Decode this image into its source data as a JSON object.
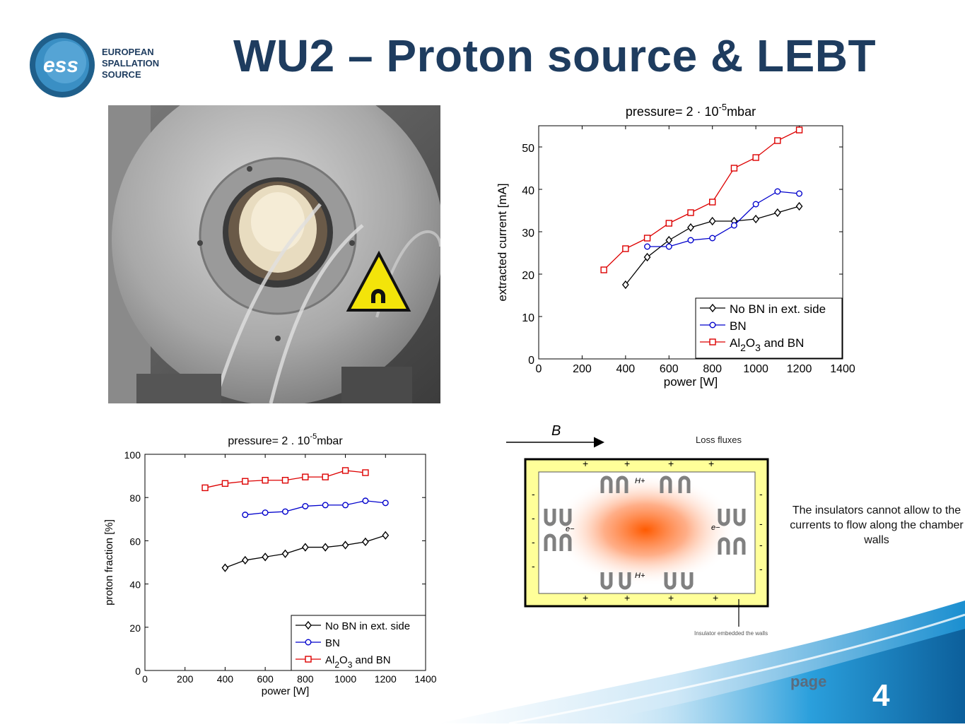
{
  "header": {
    "title": "WU2 – Proton source & LEBT",
    "logo_text": [
      "EUROPEAN",
      "SPALLATION",
      "SOURCE"
    ],
    "logo_mark": "ess"
  },
  "photo": {
    "icon": "magnetic-field-warning-sign"
  },
  "chart_data": [
    {
      "type": "line",
      "title_prefix": "pressure= 2 · 10",
      "title_exp": "-5",
      "title_suffix": "mbar",
      "xlabel": "power [W]",
      "ylabel": "extracted current [mA]",
      "xlim": [
        0,
        1400
      ],
      "ylim": [
        0,
        55
      ],
      "xticks": [
        0,
        200,
        400,
        600,
        800,
        1000,
        1200,
        1400
      ],
      "yticks": [
        0,
        10,
        20,
        30,
        40,
        50
      ],
      "grid": false,
      "legend_position": "lower-right",
      "series": [
        {
          "name": "No BN in ext. side",
          "color": "#000000",
          "marker": "diamond",
          "x": [
            400,
            500,
            600,
            700,
            800,
            900,
            1000,
            1100,
            1200
          ],
          "y": [
            17.5,
            24,
            28,
            31,
            32.5,
            32.5,
            33,
            34.5,
            36
          ]
        },
        {
          "name": "BN",
          "color": "#0000cc",
          "marker": "circle",
          "x": [
            500,
            600,
            700,
            800,
            900,
            1000,
            1100,
            1200
          ],
          "y": [
            26.5,
            26.5,
            28,
            28.5,
            31.5,
            36.5,
            39.5,
            39
          ]
        },
        {
          "name": "Al2O3 and BN",
          "color": "#dd0000",
          "marker": "square",
          "name_parts": [
            "Al",
            "2",
            "O",
            "3",
            " and BN"
          ],
          "x": [
            300,
            400,
            500,
            600,
            700,
            800,
            900,
            1000,
            1100,
            1200
          ],
          "y": [
            21,
            26,
            28.5,
            32,
            34.5,
            37,
            45,
            47.5,
            51.5,
            54
          ]
        }
      ]
    },
    {
      "type": "line",
      "title_prefix": "pressure= 2 . 10",
      "title_exp": "-5",
      "title_suffix": "mbar",
      "xlabel": "power [W]",
      "ylabel": "proton fraction [%]",
      "xlim": [
        0,
        1400
      ],
      "ylim": [
        0,
        100
      ],
      "xticks": [
        0,
        200,
        400,
        600,
        800,
        1000,
        1200,
        1400
      ],
      "yticks": [
        0,
        20,
        40,
        60,
        80,
        100
      ],
      "grid": false,
      "legend_position": "lower-right",
      "series": [
        {
          "name": "No BN in ext. side",
          "color": "#000000",
          "marker": "diamond",
          "x": [
            400,
            500,
            600,
            700,
            800,
            900,
            1000,
            1100,
            1200
          ],
          "y": [
            47.5,
            51,
            52.5,
            54,
            57,
            57,
            58,
            59.5,
            62.5
          ]
        },
        {
          "name": "BN",
          "color": "#0000cc",
          "marker": "circle",
          "x": [
            500,
            600,
            700,
            800,
            900,
            1000,
            1100,
            1200
          ],
          "y": [
            72,
            73,
            73.5,
            76,
            76.5,
            76.5,
            78.5,
            77.5
          ]
        },
        {
          "name": "Al2O3 and BN",
          "color": "#dd0000",
          "marker": "square",
          "name_parts": [
            "Al",
            "2",
            "O",
            "3",
            " and BN"
          ],
          "x": [
            300,
            400,
            500,
            600,
            700,
            800,
            900,
            1000,
            1100
          ],
          "y": [
            84.5,
            86.5,
            87.5,
            88,
            88,
            89.5,
            89.5,
            92.5,
            91.5
          ]
        }
      ]
    }
  ],
  "diagram": {
    "field_label": "B",
    "loss_label": "Loss fluxes",
    "ion_label": "H+",
    "electron_label": "e−",
    "plus": "+",
    "minus": "-",
    "insulator_label": "Insulator embedded the walls",
    "colors": {
      "insulator": "#ffff99",
      "plasma_core": "#ff5a00",
      "arrows": "#808080"
    }
  },
  "caption": "The insulators cannot allow to the currents to flow along the chamber walls",
  "footer": {
    "page_label": "page",
    "page_number": "4"
  }
}
